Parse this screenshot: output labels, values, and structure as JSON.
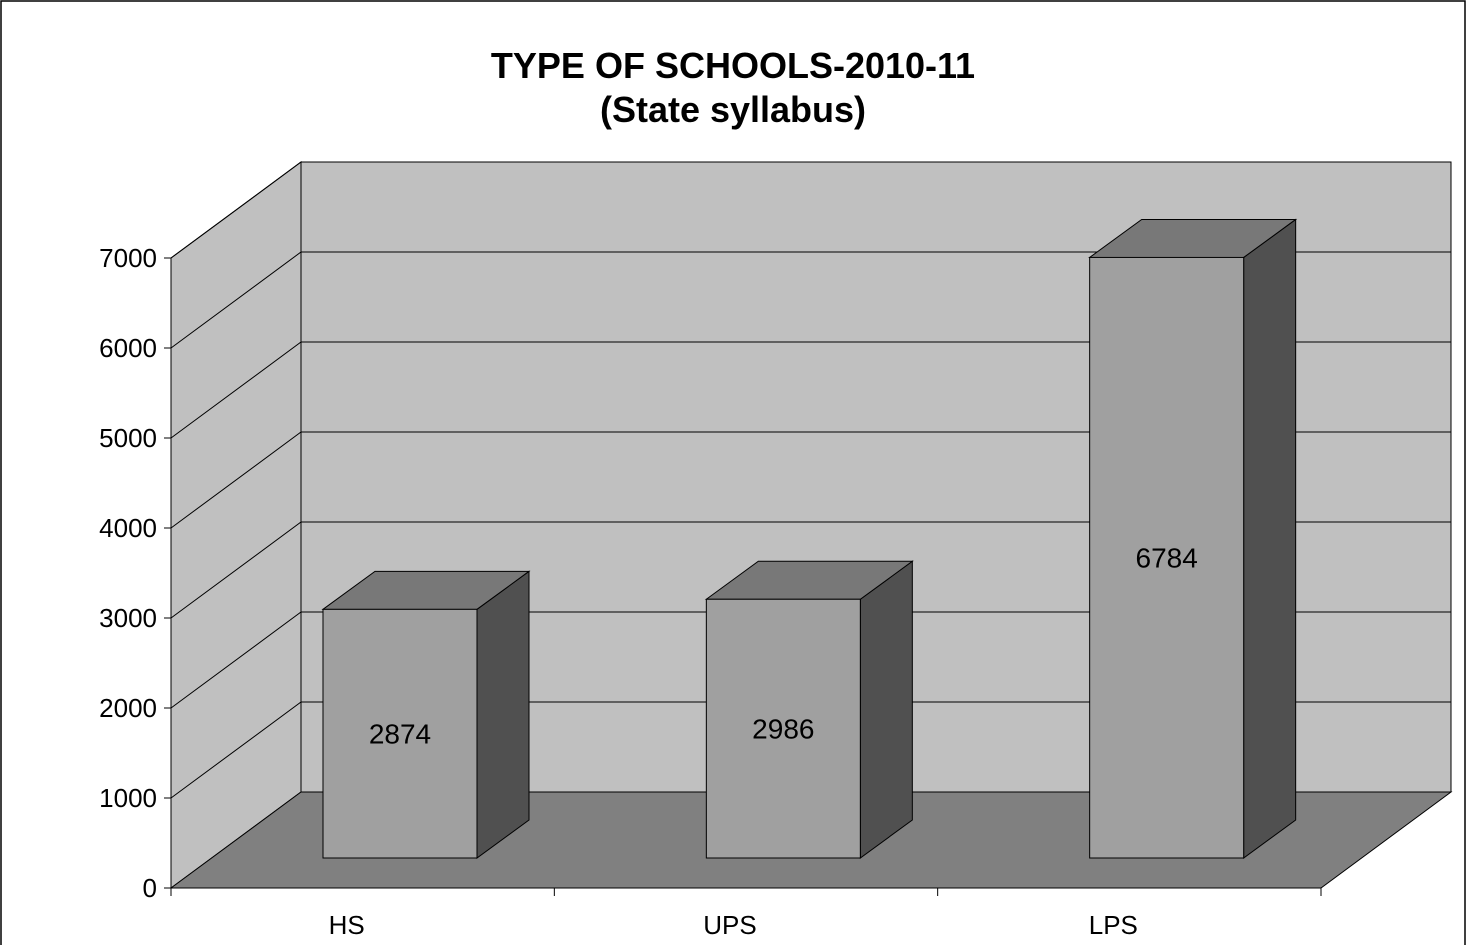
{
  "chart_data": {
    "type": "bar",
    "title": "TYPE OF SCHOOLS-2010-11",
    "subtitle": "(State syllabus)",
    "categories": [
      "HS",
      "UPS",
      "LPS"
    ],
    "series": [
      {
        "values": [
          2874,
          2986,
          6784
        ]
      }
    ],
    "data_labels": [
      "2874",
      "2986",
      "6784"
    ],
    "yticks": [
      "0",
      "1000",
      "2000",
      "3000",
      "4000",
      "5000",
      "6000",
      "7000"
    ],
    "ylim": [
      0,
      7000
    ],
    "grid": true,
    "legend": "none",
    "style": "3d-column",
    "colors": {
      "back_wall": "#c0c0c0",
      "side_wall": "#c0c0c0",
      "floor": "#808080",
      "bar_front": "#a0a0a0",
      "bar_top": "#787878",
      "bar_side": "#505050",
      "frame": "#000000"
    }
  }
}
